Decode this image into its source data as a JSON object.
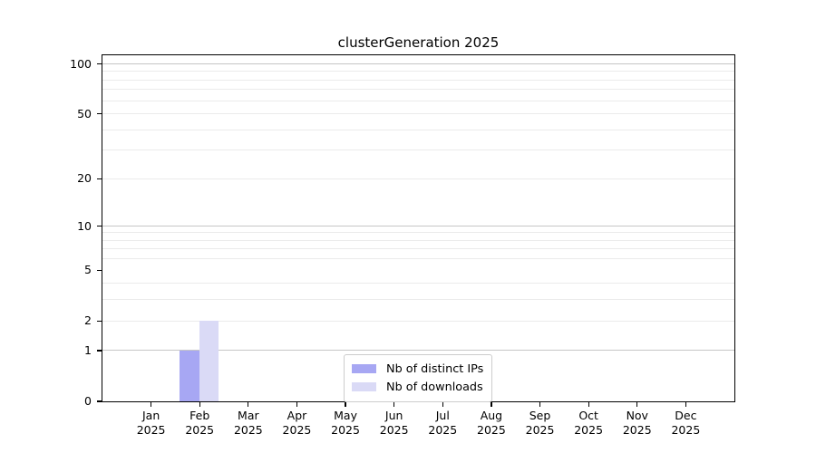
{
  "title": "clusterGeneration 2025",
  "colors": {
    "background": "#ffffff",
    "spine": "#000000",
    "grid_major": "#c6c6c6",
    "grid_minor": "#ebebeb",
    "legend_border": "#cccccc",
    "series_distinct_ips": "#a7a7f3",
    "series_downloads": "#dadaf6"
  },
  "chart_data": {
    "type": "bar",
    "title": "clusterGeneration 2025",
    "categories": [
      "Jan",
      "Feb",
      "Mar",
      "Apr",
      "May",
      "Jun",
      "Jul",
      "Aug",
      "Sep",
      "Oct",
      "Nov",
      "Dec"
    ],
    "category_year": "2025",
    "series": [
      {
        "name": "Nb of distinct IPs",
        "color": "#a7a7f3",
        "values": [
          0,
          1,
          0,
          0,
          0,
          0,
          0,
          0,
          0,
          0,
          0,
          0
        ]
      },
      {
        "name": "Nb of downloads",
        "color": "#dadaf6",
        "values": [
          0,
          2,
          0,
          0,
          0,
          0,
          0,
          0,
          0,
          0,
          0,
          0
        ]
      }
    ],
    "xlabel": "",
    "ylabel": "",
    "yscale": "log1p",
    "ylim": [
      0,
      113
    ],
    "y_ticks": [
      0,
      1,
      2,
      5,
      10,
      20,
      50,
      100
    ],
    "y_major_gridlines": [
      1,
      10,
      100
    ],
    "y_minor_gridlines": [
      2,
      3,
      4,
      6,
      7,
      8,
      9,
      20,
      30,
      40,
      50,
      60,
      70,
      80,
      90
    ],
    "grid": "horizontal",
    "legend_position": "lower center"
  }
}
